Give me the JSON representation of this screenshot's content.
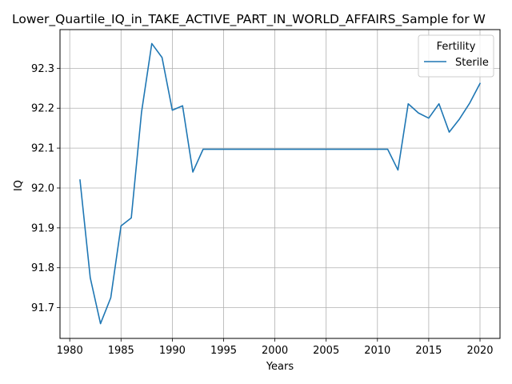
{
  "chart_data": {
    "type": "line",
    "title": "Lower_Quartile_IQ_in_TAKE_ACTIVE_PART_IN_WORLD_AFFAIRS_Sample for W",
    "xlabel": "Years",
    "ylabel": "IQ",
    "xlim": [
      1979.05,
      2021.95
    ],
    "ylim": [
      91.623,
      92.397
    ],
    "xticks": [
      1980,
      1985,
      1990,
      1995,
      2000,
      2005,
      2010,
      2015,
      2020
    ],
    "yticks": [
      91.7,
      91.8,
      91.9,
      92.0,
      92.1,
      92.2,
      92.3
    ],
    "ytick_labels": [
      "91.7",
      "91.8",
      "91.9",
      "92.0",
      "92.1",
      "92.2",
      "92.3"
    ],
    "grid": true,
    "legend": {
      "title": "Fertility",
      "placement": "upper right"
    },
    "series": [
      {
        "name": "Sterile",
        "color": "#1f77b4",
        "x": [
          1981,
          1982,
          1983,
          1984,
          1985,
          1986,
          1987,
          1988,
          1989,
          1990,
          1991,
          1992,
          1993,
          1994,
          1995,
          1996,
          1997,
          1998,
          1999,
          2000,
          2001,
          2002,
          2003,
          2004,
          2005,
          2006,
          2007,
          2008,
          2009,
          2010,
          2011,
          2012,
          2013,
          2014,
          2015,
          2016,
          2017,
          2018,
          2019,
          2020
        ],
        "y": [
          92.02,
          91.775,
          91.66,
          91.725,
          91.905,
          91.925,
          92.19,
          92.362,
          92.327,
          92.195,
          92.206,
          92.04,
          92.097,
          92.097,
          92.097,
          92.097,
          92.097,
          92.097,
          92.097,
          92.097,
          92.097,
          92.097,
          92.097,
          92.097,
          92.097,
          92.097,
          92.097,
          92.097,
          92.097,
          92.097,
          92.097,
          92.045,
          92.211,
          92.188,
          92.175,
          92.211,
          92.14,
          92.173,
          92.213,
          92.262
        ]
      }
    ]
  }
}
